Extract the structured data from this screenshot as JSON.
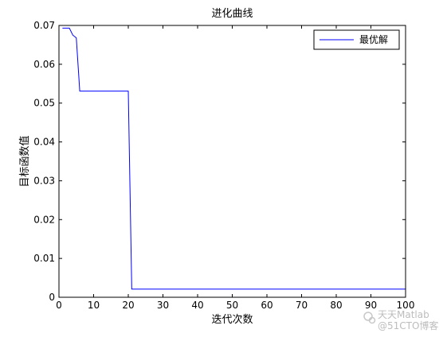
{
  "chart_data": {
    "type": "line",
    "title": "进化曲线",
    "xlabel": "迭代次数",
    "ylabel": "目标函数值",
    "xlim": [
      0,
      100
    ],
    "ylim": [
      0,
      0.07
    ],
    "xticks": [
      0,
      10,
      20,
      30,
      40,
      50,
      60,
      70,
      80,
      90,
      100
    ],
    "xtick_labels": [
      "0",
      "10",
      "20",
      "30",
      "40",
      "50",
      "60",
      "70",
      "80",
      "90",
      "100"
    ],
    "yticks": [
      0,
      0.01,
      0.02,
      0.03,
      0.04,
      0.05,
      0.06,
      0.07
    ],
    "ytick_labels": [
      "0",
      "0.01",
      "0.02",
      "0.03",
      "0.04",
      "0.05",
      "0.06",
      "0.07"
    ],
    "grid": false,
    "legend_position": "top-right",
    "series": [
      {
        "name": "最优解",
        "color": "#0000ff",
        "x": [
          1,
          3,
          4,
          5,
          6,
          20,
          21,
          100
        ],
        "y": [
          0.0693,
          0.0693,
          0.0675,
          0.0668,
          0.0531,
          0.0531,
          0.0021,
          0.0021
        ]
      }
    ]
  },
  "watermark": {
    "line1": "天天Matlab",
    "line2": "@51CTO博客"
  }
}
